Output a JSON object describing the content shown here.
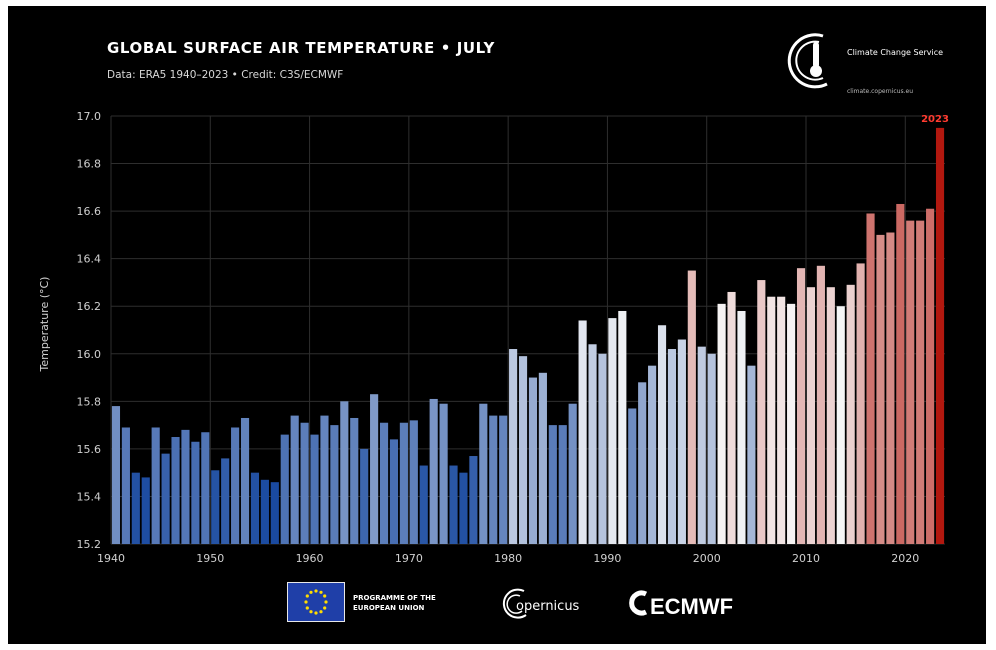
{
  "header": {
    "title": "GLOBAL SURFACE AIR TEMPERATURE • JULY",
    "subtitle": "Data: ERA5 1940–2023 • Credit: C3S/ECMWF"
  },
  "brand": {
    "name": "Climate Change Service",
    "url": "climate.copernicus.eu"
  },
  "footer": {
    "eu_text": "PROGRAMME OF THE EUROPEAN UNION",
    "copernicus": "opernicus",
    "ecmwf": "ECMWF"
  },
  "chart_data": {
    "type": "bar",
    "ylabel": "Temperature (°C)",
    "ylim": [
      15.2,
      17.0
    ],
    "yticks": [
      "17.0",
      "16.8",
      "16.6",
      "16.4",
      "16.2",
      "16.0",
      "15.8",
      "15.6",
      "15.4",
      "15.2"
    ],
    "xticks": [
      "1940",
      "1950",
      "1960",
      "1970",
      "1980",
      "1990",
      "2000",
      "2010",
      "2020"
    ],
    "grid": true,
    "highlight_label": "2023",
    "highlight_color": "#ff3b30",
    "colors": {
      "cold": "#1a4aa0",
      "neutral": "#f7f7f7",
      "warm": "#b2180f"
    },
    "years": [
      1940,
      1941,
      1942,
      1943,
      1944,
      1945,
      1946,
      1947,
      1948,
      1949,
      1950,
      1951,
      1952,
      1953,
      1954,
      1955,
      1956,
      1957,
      1958,
      1959,
      1960,
      1961,
      1962,
      1963,
      1964,
      1965,
      1966,
      1967,
      1968,
      1969,
      1970,
      1971,
      1972,
      1973,
      1974,
      1975,
      1976,
      1977,
      1978,
      1979,
      1980,
      1981,
      1982,
      1983,
      1984,
      1985,
      1986,
      1987,
      1988,
      1989,
      1990,
      1991,
      1992,
      1993,
      1994,
      1995,
      1996,
      1997,
      1998,
      1999,
      2000,
      2001,
      2002,
      2003,
      2004,
      2005,
      2006,
      2007,
      2008,
      2009,
      2010,
      2011,
      2012,
      2013,
      2014,
      2015,
      2016,
      2017,
      2018,
      2019,
      2020,
      2021,
      2022,
      2023
    ],
    "values": [
      15.78,
      15.69,
      15.5,
      15.48,
      15.69,
      15.58,
      15.65,
      15.68,
      15.63,
      15.67,
      15.51,
      15.56,
      15.69,
      15.73,
      15.5,
      15.47,
      15.46,
      15.66,
      15.74,
      15.71,
      15.66,
      15.74,
      15.7,
      15.8,
      15.73,
      15.6,
      15.83,
      15.71,
      15.64,
      15.71,
      15.72,
      15.53,
      15.81,
      15.79,
      15.53,
      15.5,
      15.57,
      15.79,
      15.74,
      15.74,
      16.02,
      15.99,
      15.9,
      15.92,
      15.7,
      15.7,
      15.79,
      16.14,
      16.04,
      16.0,
      16.15,
      16.18,
      15.77,
      15.88,
      15.95,
      16.12,
      16.02,
      16.06,
      16.35,
      16.03,
      16.0,
      16.21,
      16.26,
      16.18,
      15.95,
      16.31,
      16.24,
      16.24,
      16.21,
      16.36,
      16.28,
      16.37,
      16.28,
      16.2,
      16.29,
      16.38,
      16.59,
      16.5,
      16.51,
      16.63,
      16.56,
      16.56,
      16.61,
      16.95
    ]
  }
}
